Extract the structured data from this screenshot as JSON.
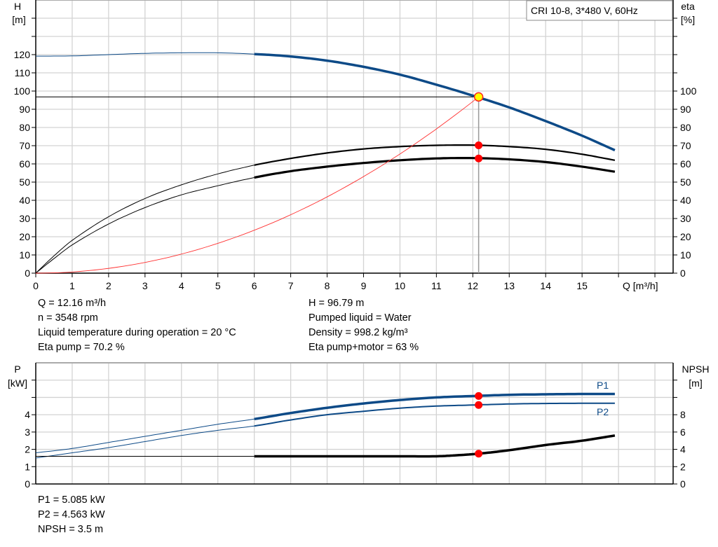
{
  "chart_data": [
    {
      "type": "line",
      "title": "CRI 10-8, 3*480 V, 60Hz",
      "xlabel": "Q [m³/h]",
      "ylabel_left": [
        "H",
        "[m]"
      ],
      "ylabel_right": [
        "eta",
        "[%]"
      ],
      "xlim": [
        0,
        17.5
      ],
      "ylim_left": [
        0,
        150
      ],
      "ylim_right": [
        0,
        150
      ],
      "x_ticks": [
        "0",
        "1",
        "2",
        "3",
        "4",
        "5",
        "6",
        "7",
        "8",
        "9",
        "10",
        "11",
        "12",
        "13",
        "14",
        "15"
      ],
      "y_ticks_left": [
        "0",
        "10",
        "20",
        "30",
        "40",
        "50",
        "60",
        "70",
        "80",
        "90",
        "100",
        "110",
        "120"
      ],
      "y_ticks_right": [
        "0",
        "10",
        "20",
        "30",
        "40",
        "50",
        "60",
        "70",
        "80",
        "90",
        "100"
      ],
      "grid": true,
      "series": [
        {
          "id": "H",
          "axis": "left",
          "color": "#0d4a87",
          "thin_until": 6,
          "x": [
            0,
            1,
            2,
            3,
            4,
            5,
            6,
            7,
            8,
            9,
            10,
            11,
            12,
            13,
            14,
            15,
            15.9
          ],
          "y": [
            119.2,
            119.3,
            120,
            120.7,
            121,
            121,
            120.3,
            119,
            116.7,
            113.3,
            109,
            103.5,
            97.5,
            91,
            83.5,
            75.5,
            67.5
          ]
        },
        {
          "id": "eta_pump",
          "axis": "right",
          "color": "#000000",
          "thin_until": 6,
          "x": [
            0,
            0.5,
            1,
            2,
            3,
            4,
            5,
            6,
            7,
            8,
            9,
            10,
            11,
            12,
            13,
            14,
            15,
            15.9
          ],
          "y": [
            0,
            9.5,
            18,
            31,
            41,
            48.5,
            54.5,
            59.3,
            63,
            66,
            68.2,
            69.5,
            70.2,
            70.3,
            69.5,
            68,
            65.3,
            62
          ]
        },
        {
          "id": "eta_pump_motor",
          "axis": "right",
          "color": "#000000",
          "thin_until": 6,
          "x": [
            0,
            0.5,
            1,
            2,
            3,
            4,
            5,
            6,
            7,
            8,
            9,
            10,
            11,
            12,
            13,
            14,
            15,
            15.9
          ],
          "y": [
            0,
            8,
            15.5,
            27,
            36,
            43,
            48,
            52.5,
            56,
            58.5,
            60.5,
            62,
            63,
            63.2,
            62.5,
            61,
            58.5,
            55.7
          ]
        },
        {
          "id": "system",
          "axis": "left",
          "color": "#ff3030",
          "quadratic_through": [
            12.16,
            96.79
          ]
        }
      ],
      "duty_point": {
        "q": 12.16,
        "h": 96.79,
        "eta_pump": 70.2,
        "eta_pump_motor": 63
      }
    },
    {
      "type": "line",
      "xlabel": "",
      "ylabel_left": [
        "P",
        "[kW]"
      ],
      "ylabel_right": [
        "NPSH",
        "[m]"
      ],
      "xlim": [
        0,
        17.5
      ],
      "ylim_left": [
        0,
        7
      ],
      "ylim_right": [
        0,
        14
      ],
      "y_ticks_left": [
        "0",
        "1",
        "2",
        "3",
        "4"
      ],
      "y_ticks_right": [
        "0",
        "2",
        "4",
        "6",
        "8"
      ],
      "grid": true,
      "series": [
        {
          "name": "P1",
          "axis": "left",
          "color": "#0d4a87",
          "thin_until": 6,
          "x": [
            0,
            1,
            2,
            3,
            4,
            5,
            6,
            7,
            8,
            9,
            10,
            11,
            12,
            13,
            14,
            15,
            15.9
          ],
          "y": [
            1.8,
            2.05,
            2.4,
            2.75,
            3.1,
            3.45,
            3.75,
            4.1,
            4.4,
            4.65,
            4.85,
            5.0,
            5.08,
            5.15,
            5.18,
            5.2,
            5.2
          ]
        },
        {
          "name": "P2",
          "axis": "left",
          "color": "#0d4a87",
          "thin_until": 6,
          "x": [
            0,
            1,
            2,
            3,
            4,
            5,
            6,
            7,
            8,
            9,
            10,
            11,
            12,
            13,
            14,
            15,
            15.9
          ],
          "y": [
            1.5,
            1.8,
            2.1,
            2.45,
            2.8,
            3.1,
            3.35,
            3.7,
            4.0,
            4.2,
            4.38,
            4.5,
            4.56,
            4.62,
            4.65,
            4.66,
            4.66
          ]
        },
        {
          "id": "NPSH",
          "axis": "right",
          "color": "#000000",
          "thin_until": 6,
          "x": [
            0,
            6,
            7,
            8,
            9,
            10,
            11,
            11.5,
            12.16,
            13,
            14,
            15,
            15.9
          ],
          "y": [
            3.2,
            3.2,
            3.2,
            3.2,
            3.2,
            3.2,
            3.2,
            3.3,
            3.5,
            3.9,
            4.5,
            5.0,
            5.6
          ]
        }
      ],
      "duty_point": {
        "q": 12.16,
        "p1": 5.085,
        "p2": 4.563,
        "npsh": 3.5
      }
    }
  ],
  "info_top_left": [
    "Q = 12.16 m³/h",
    "n = 3548 rpm",
    "Liquid temperature during operation = 20 °C",
    "Eta pump = 70.2 %"
  ],
  "info_top_right": [
    "H = 96.79 m",
    "Pumped liquid = Water",
    "Density = 998.2 kg/m³",
    "Eta pump+motor = 63 %"
  ],
  "info_bottom": [
    "P1 = 5.085 kW",
    "P2 = 4.563 kW",
    "NPSH = 3.5 m"
  ]
}
